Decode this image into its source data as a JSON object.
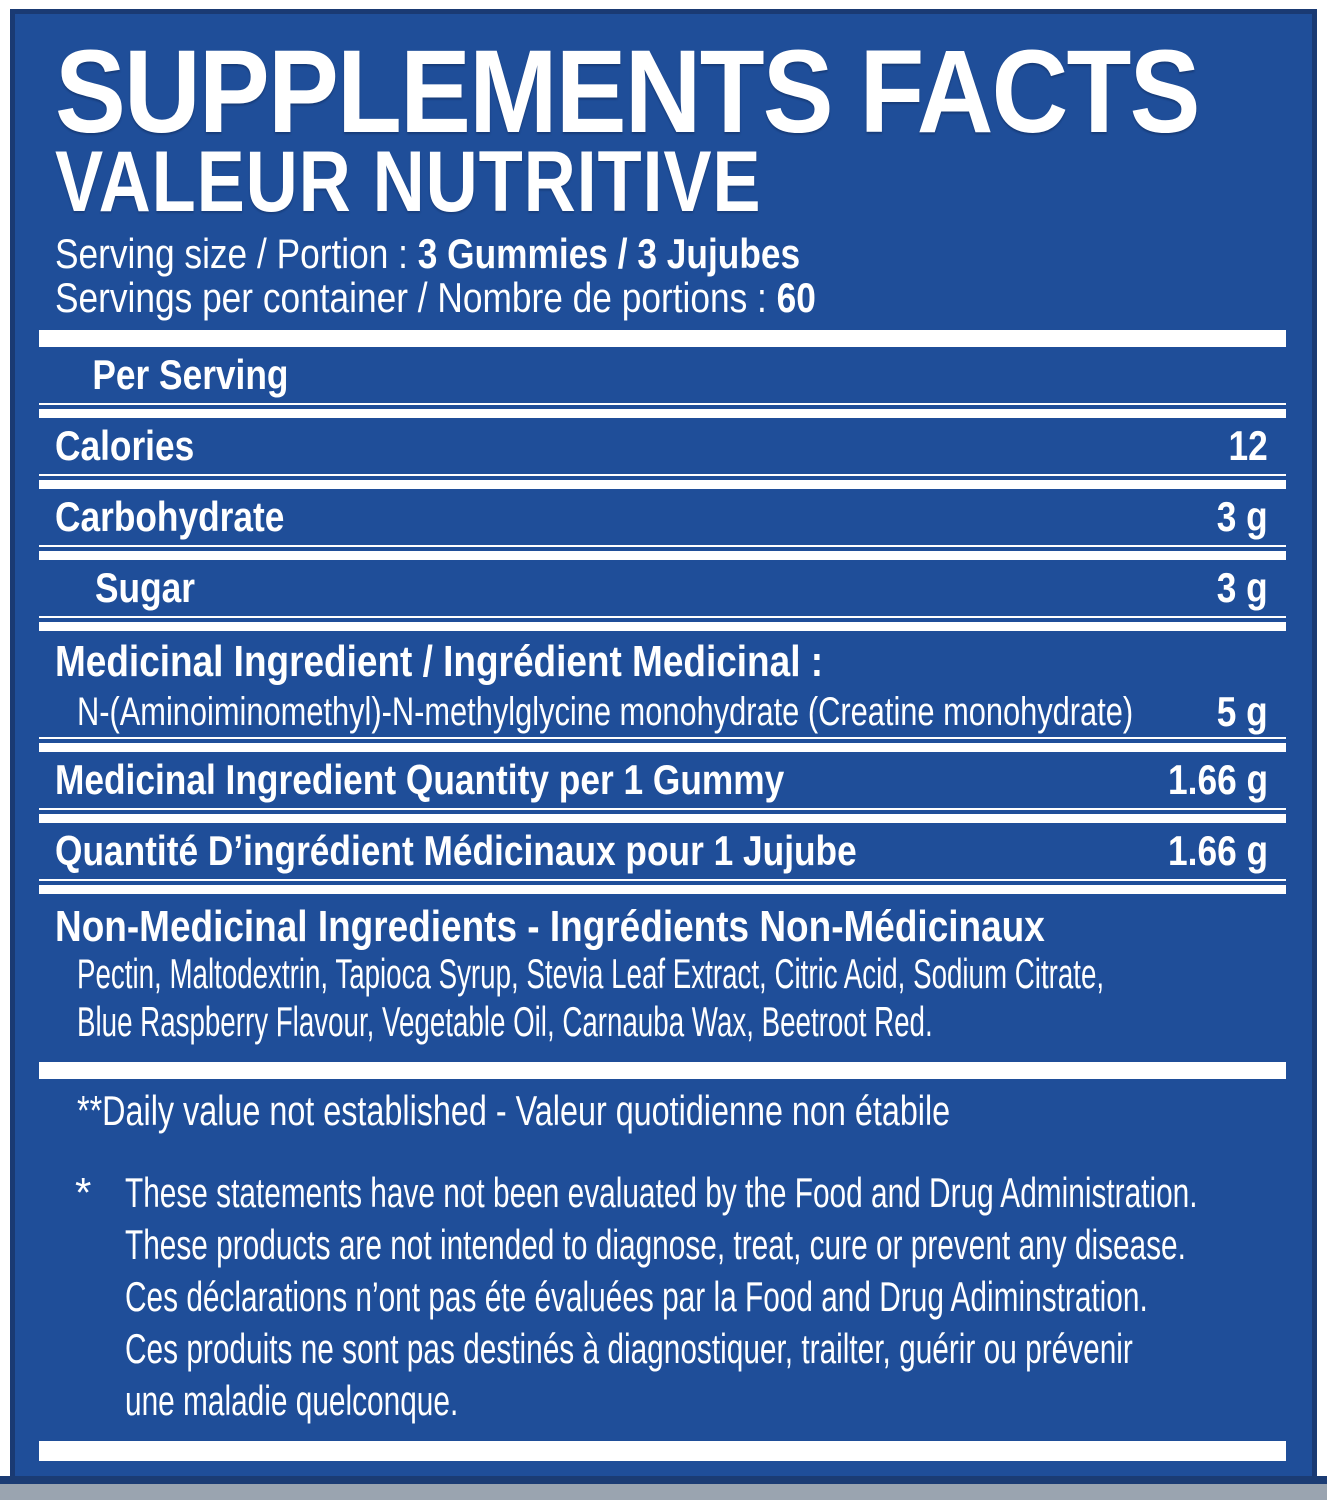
{
  "panel": {
    "title": "SUPPLEMENTS FACTS",
    "subtitle": "VALEUR NUTRITIVE",
    "serving": {
      "size_label": "Serving size / Portion : ",
      "size_value": "3 Gummies / 3 Jujubes",
      "count_label": "Servings per container / Nombre de portions : ",
      "count_value": "60"
    },
    "column_header": "Per Serving",
    "nutrition_rows": [
      {
        "label": "Calories",
        "value": "12"
      },
      {
        "label": "Carbohydrate",
        "value": "3 g"
      },
      {
        "label": "Sugar",
        "value": "3 g"
      }
    ],
    "medicinal": {
      "header": "Medicinal Ingredient / Ingrédient Medicinal :",
      "ingredient": "N-(Aminoiminomethyl)-N-methylglycine monohydrate (Creatine monohydrate)",
      "ingredient_value": "5 g",
      "per_gummy_label": "Medicinal Ingredient Quantity per 1 Gummy",
      "per_gummy_value": "1.66 g",
      "per_jujube_label": "Quantité D’ingrédient Médicinaux pour 1 Jujube",
      "per_jujube_value": "1.66 g"
    },
    "non_medicinal": {
      "header": "Non-Medicinal Ingredients - Ingrédients Non-Médicinaux",
      "lines": [
        "Pectin, Maltodextrin, Tapioca Syrup, Stevia Leaf Extract, Citric Acid, Sodium Citrate,",
        "Blue Raspberry Flavour, Vegetable Oil, Carnauba Wax, Beetroot Red."
      ]
    },
    "footnotes": {
      "daily_value": "**Daily value not established - Valeur quotidienne non étabile",
      "disclaimer_mark": "*",
      "disclaimer_lines": [
        "These statements have not been evaluated by the Food and Drug Administration.",
        "These products are not intended to diagnose, treat, cure or prevent any disease.",
        "Ces déclarations n’ont pas éte évaluées par la Food and Drug Adiminstration.",
        "Ces produits ne sont pas destinés à diagnostiquer, trailter, guérir ou prévenir",
        "une maladie quelconque."
      ]
    },
    "colors": {
      "background": "#1f4e99",
      "border": "#1a3a73",
      "text": "#ffffff",
      "bottom_strip": "#9aa4b0"
    }
  }
}
